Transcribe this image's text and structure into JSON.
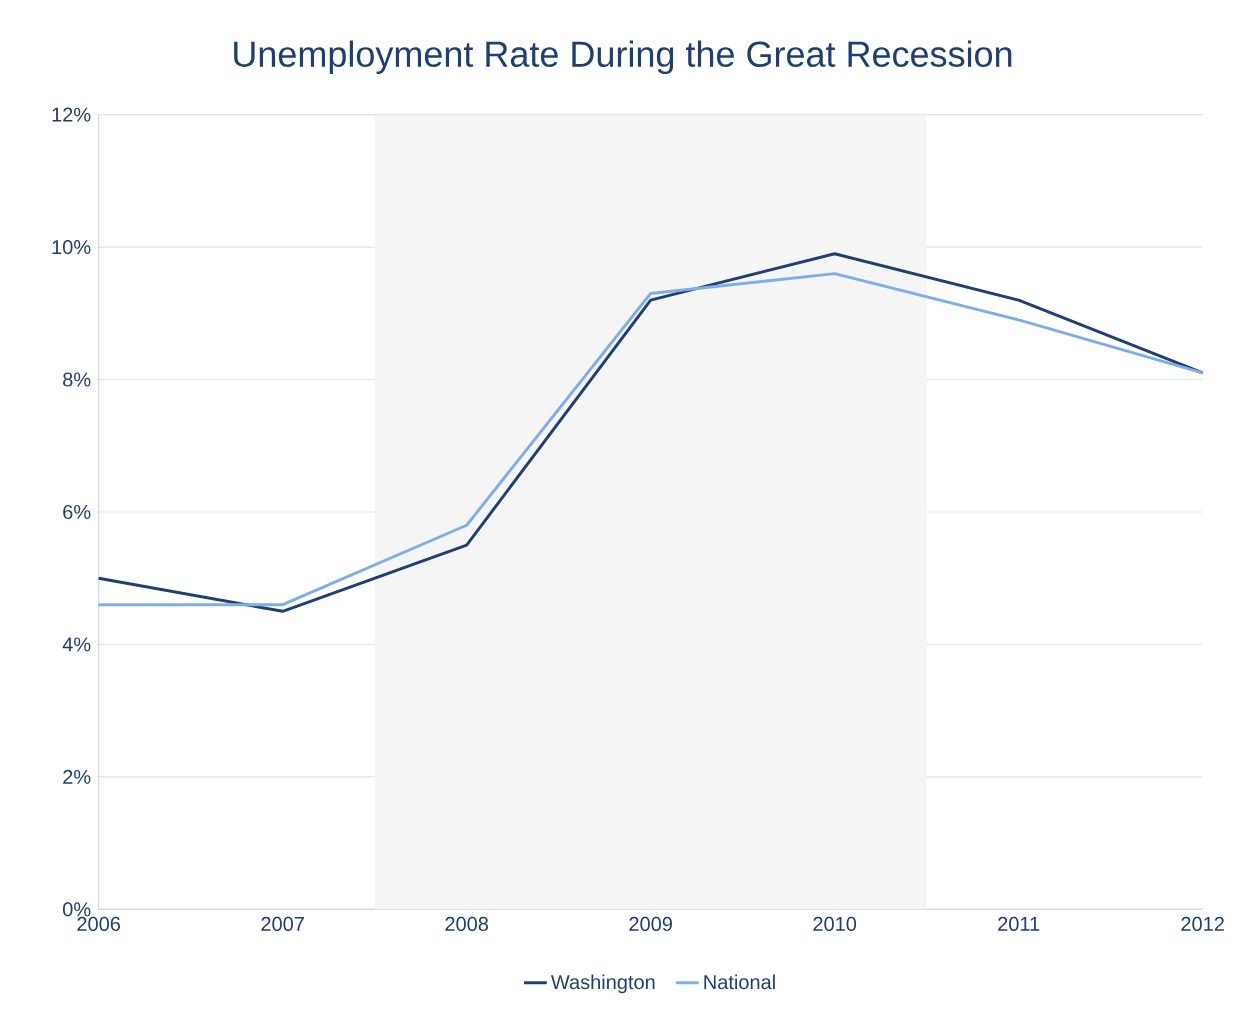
{
  "chart_data": {
    "type": "line",
    "title": "Unemployment Rate During the Great Recession",
    "x": [
      2006,
      2007,
      2008,
      2009,
      2010,
      2011,
      2012
    ],
    "series": [
      {
        "name": "Washington",
        "color": "#1f3f73",
        "values": [
          5.0,
          4.5,
          5.5,
          9.2,
          9.9,
          9.2,
          8.1
        ]
      },
      {
        "name": "National",
        "color": "#7eaee8",
        "values": [
          4.6,
          4.6,
          5.8,
          9.3,
          9.6,
          8.9,
          8.1
        ]
      }
    ],
    "xlim": [
      2006,
      2012
    ],
    "xticks": [
      2006,
      2007,
      2008,
      2009,
      2010,
      2011,
      2012
    ],
    "ylim": [
      0,
      12
    ],
    "yticks": [
      {
        "value": 0,
        "label": "0%"
      },
      {
        "value": 2,
        "label": "2%"
      },
      {
        "value": 4,
        "label": "4%"
      },
      {
        "value": 6,
        "label": "6%"
      },
      {
        "value": 8,
        "label": "8%"
      },
      {
        "value": 10,
        "label": "10%"
      },
      {
        "value": 12,
        "label": "12%"
      }
    ],
    "bands": [
      {
        "axis": "x",
        "from": 2007.5,
        "to": 2010.5,
        "color": "#f5f5f5"
      }
    ],
    "grid": "y",
    "legend": "bottom"
  }
}
